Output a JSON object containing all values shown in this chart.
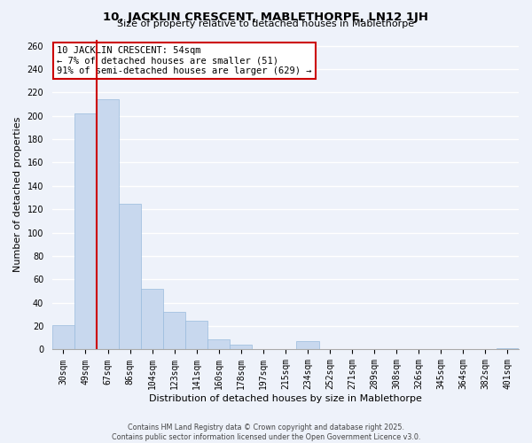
{
  "title": "10, JACKLIN CRESCENT, MABLETHORPE, LN12 1JH",
  "subtitle": "Size of property relative to detached houses in Mablethorpe",
  "xlabel": "Distribution of detached houses by size in Mablethorpe",
  "ylabel": "Number of detached properties",
  "bin_labels": [
    "30sqm",
    "49sqm",
    "67sqm",
    "86sqm",
    "104sqm",
    "123sqm",
    "141sqm",
    "160sqm",
    "178sqm",
    "197sqm",
    "215sqm",
    "234sqm",
    "252sqm",
    "271sqm",
    "289sqm",
    "308sqm",
    "326sqm",
    "345sqm",
    "364sqm",
    "382sqm",
    "401sqm"
  ],
  "bar_heights": [
    21,
    202,
    214,
    125,
    52,
    32,
    25,
    9,
    4,
    0,
    0,
    7,
    0,
    0,
    0,
    0,
    0,
    0,
    0,
    0,
    1
  ],
  "bar_color": "#c8d8ee",
  "bar_edge_color": "#99bbdd",
  "vline_x_index": 1,
  "vline_color": "#cc0000",
  "ylim": [
    0,
    265
  ],
  "yticks": [
    0,
    20,
    40,
    60,
    80,
    100,
    120,
    140,
    160,
    180,
    200,
    220,
    240,
    260
  ],
  "annotation_title": "10 JACKLIN CRESCENT: 54sqm",
  "annotation_line1": "← 7% of detached houses are smaller (51)",
  "annotation_line2": "91% of semi-detached houses are larger (629) →",
  "annotation_box_color": "#ffffff",
  "annotation_box_edge": "#cc0000",
  "footer_line1": "Contains HM Land Registry data © Crown copyright and database right 2025.",
  "footer_line2": "Contains public sector information licensed under the Open Government Licence v3.0.",
  "background_color": "#eef2fa",
  "grid_color": "#ffffff",
  "title_fontsize": 9.5,
  "subtitle_fontsize": 8,
  "axis_label_fontsize": 8,
  "tick_fontsize": 7,
  "annotation_fontsize": 7.5,
  "footer_fontsize": 5.8
}
